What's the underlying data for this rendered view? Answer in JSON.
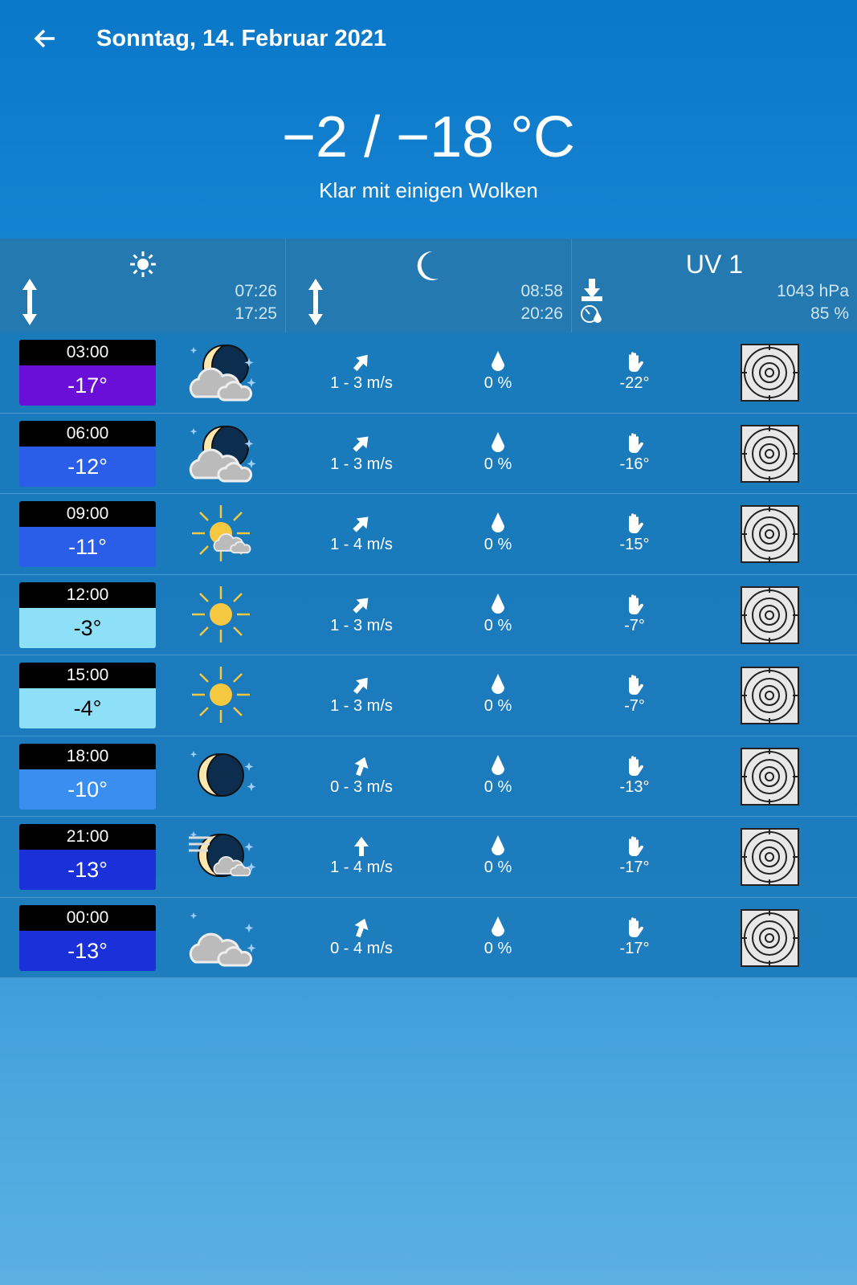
{
  "header": {
    "title": "Sonntag, 14. Februar 2021",
    "temperature": "−2 / −18 °C",
    "condition": "Klar mit einigen Wolken"
  },
  "info": {
    "sunrise": "07:26",
    "sunset": "17:25",
    "moonrise": "08:58",
    "moonset": "20:26",
    "uv": "UV 1",
    "pressure": "1043 hPa",
    "humidity": "85 %"
  },
  "rows": [
    {
      "time": "03:00",
      "temp": "-17°",
      "color": "#6a0fd8",
      "text_color": "#ffffff",
      "icon": "moon-clouds",
      "wind": "1 - 3 m/s",
      "wind_dir_deg": 40,
      "rain": "0 %",
      "feels": "-22°"
    },
    {
      "time": "06:00",
      "temp": "-12°",
      "color": "#2a5ee8",
      "text_color": "#ffffff",
      "icon": "moon-clouds",
      "wind": "1 - 3 m/s",
      "wind_dir_deg": 45,
      "rain": "0 %",
      "feels": "-16°"
    },
    {
      "time": "09:00",
      "temp": "-11°",
      "color": "#2a5ee8",
      "text_color": "#ffffff",
      "icon": "sun-cloud",
      "wind": "1 - 4 m/s",
      "wind_dir_deg": 45,
      "rain": "0 %",
      "feels": "-15°"
    },
    {
      "time": "12:00",
      "temp": "-3°",
      "color": "#8ee0f8",
      "text_color": "#000000",
      "icon": "sun",
      "wind": "1 - 3 m/s",
      "wind_dir_deg": 45,
      "rain": "0 %",
      "feels": "-7°"
    },
    {
      "time": "15:00",
      "temp": "-4°",
      "color": "#8ee0f8",
      "text_color": "#000000",
      "icon": "sun",
      "wind": "1 - 3 m/s",
      "wind_dir_deg": 40,
      "rain": "0 %",
      "feels": "-7°"
    },
    {
      "time": "18:00",
      "temp": "-10°",
      "color": "#3a8ef0",
      "text_color": "#ffffff",
      "icon": "moon",
      "wind": "0 - 3 m/s",
      "wind_dir_deg": 20,
      "rain": "0 %",
      "feels": "-13°"
    },
    {
      "time": "21:00",
      "temp": "-13°",
      "color": "#1a30d8",
      "text_color": "#ffffff",
      "icon": "moon-wind-cloud",
      "wind": "1 - 4 m/s",
      "wind_dir_deg": 0,
      "rain": "0 %",
      "feels": "-17°"
    },
    {
      "time": "00:00",
      "temp": "-13°",
      "color": "#1a30d8",
      "text_color": "#ffffff",
      "icon": "clouds",
      "wind": "0 - 4 m/s",
      "wind_dir_deg": 20,
      "rain": "0 %",
      "feels": "-17°"
    }
  ]
}
